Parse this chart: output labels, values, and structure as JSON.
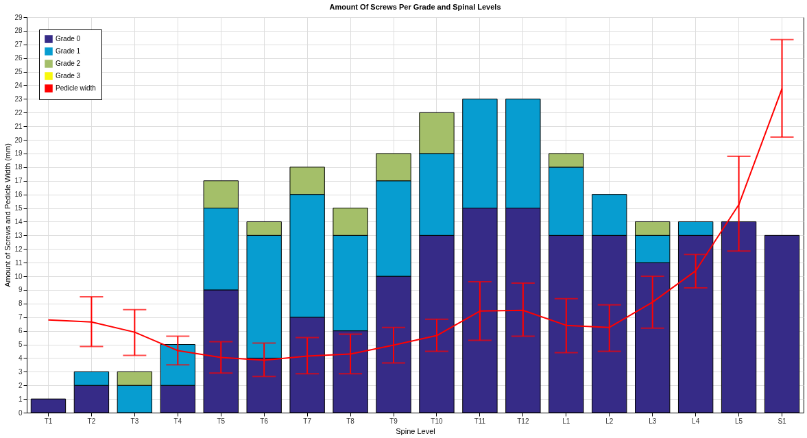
{
  "chart_data": {
    "type": "bar",
    "stacked": true,
    "title": "Amount Of Screws Per Grade and Spinal Levels",
    "xlabel": "Spine Level",
    "ylabel": "Amount of Screws and Pedicle Width (mm)",
    "categories": [
      "T1",
      "T2",
      "T3",
      "T4",
      "T5",
      "T6",
      "T7",
      "T8",
      "T9",
      "T10",
      "T11",
      "T12",
      "L1",
      "L2",
      "L3",
      "L4",
      "L5",
      "S1"
    ],
    "series": [
      {
        "name": "Grade 0",
        "color": "#362b87",
        "values": [
          1,
          2,
          0,
          2,
          9,
          4,
          7,
          6,
          10,
          13,
          15,
          15,
          13,
          13,
          11,
          13,
          14,
          13
        ]
      },
      {
        "name": "Grade 1",
        "color": "#079dd0",
        "values": [
          0,
          1,
          2,
          3,
          6,
          9,
          9,
          7,
          7,
          6,
          8,
          8,
          5,
          3,
          2,
          1,
          0,
          0
        ]
      },
      {
        "name": "Grade 2",
        "color": "#a4bf69",
        "values": [
          0,
          0,
          1,
          0,
          2,
          1,
          2,
          2,
          2,
          3,
          0,
          0,
          1,
          0,
          1,
          0,
          0,
          0
        ]
      },
      {
        "name": "Grade 3",
        "color": "#f8f80c",
        "values": [
          0,
          0,
          0,
          0,
          0,
          0,
          0,
          0,
          0,
          0,
          0,
          0,
          0,
          0,
          0,
          0,
          0,
          0
        ]
      },
      {
        "name": "Pedicle width",
        "type": "line",
        "color": "#ff0000",
        "values": [
          6.8,
          6.65,
          5.9,
          4.55,
          4.05,
          3.85,
          4.15,
          4.3,
          4.95,
          5.65,
          7.45,
          7.5,
          6.4,
          6.25,
          8.1,
          10.4,
          15.25,
          23.75
        ],
        "errors": [
          null,
          [
            4.85,
            8.5
          ],
          [
            4.2,
            7.55
          ],
          [
            3.5,
            5.6
          ],
          [
            2.9,
            5.2
          ],
          [
            2.65,
            5.1
          ],
          [
            2.85,
            5.5
          ],
          [
            2.85,
            5.75
          ],
          [
            3.65,
            6.25
          ],
          [
            4.5,
            6.85
          ],
          [
            5.3,
            9.6
          ],
          [
            5.6,
            9.5
          ],
          [
            4.4,
            8.35
          ],
          [
            4.5,
            7.9
          ],
          [
            6.2,
            10.0
          ],
          [
            9.15,
            11.6
          ],
          [
            11.85,
            18.8
          ],
          [
            20.2,
            27.35
          ]
        ]
      }
    ],
    "ylim": [
      0,
      29
    ],
    "yticks": [
      0,
      1,
      2,
      3,
      4,
      5,
      6,
      7,
      8,
      9,
      10,
      11,
      12,
      13,
      14,
      15,
      16,
      17,
      18,
      19,
      20,
      21,
      22,
      23,
      24,
      25,
      26,
      27,
      28,
      29
    ],
    "grid": true,
    "legend": "top left"
  }
}
